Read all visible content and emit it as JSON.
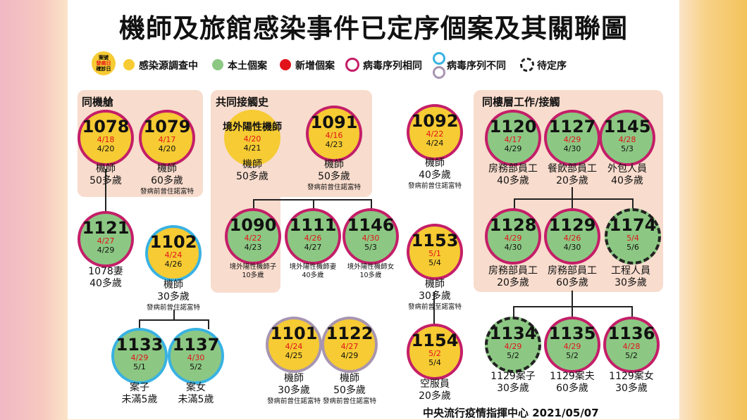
{
  "title": "機師及旅館感染事件已定序個案及其關聯圖",
  "legend": {
    "key_lines": [
      "案號",
      "發病日",
      "確診日"
    ],
    "items": [
      "感染源調查中",
      "本土個案",
      "新增個案",
      "病毒序列相同",
      "病毒序列不同",
      "待定序"
    ],
    "colors": {
      "yellow": "#f6cb33",
      "green": "#8cc883",
      "red": "#e2121a",
      "magenta": "#c41e68",
      "blue": "#39b2e2",
      "purple": "#a895b1"
    }
  },
  "groups": {
    "g1": "同機艙",
    "g2": "共同接觸史",
    "g3": "同樓層工作/接觸"
  },
  "nodes": {
    "n1078": {
      "id": "1078",
      "onset": "4/18",
      "confirm": "4/20",
      "label": [
        "機師",
        "50多歲"
      ]
    },
    "n1079": {
      "id": "1079",
      "onset": "4/17",
      "confirm": "4/20",
      "label": [
        "機師",
        "60多歲",
        "發病前曾住諾富特"
      ]
    },
    "nOverseas": {
      "id": "境外陽性機師",
      "onset": "4/20",
      "confirm": "4/21",
      "label": [
        "機師",
        "50多歲"
      ]
    },
    "n1091": {
      "id": "1091",
      "onset": "4/16",
      "confirm": "4/23",
      "label": [
        "機師",
        "50多歲",
        "發病前曾住諾富特"
      ]
    },
    "n1092": {
      "id": "1092",
      "onset": "4/22",
      "confirm": "4/24",
      "label": [
        "機師",
        "40多歲",
        "發病前曾住諾富特"
      ]
    },
    "n1120": {
      "id": "1120",
      "onset": "4/17",
      "confirm": "4/29",
      "label": [
        "房務部員工",
        "40多歲"
      ]
    },
    "n1127": {
      "id": "1127",
      "onset": "4/29",
      "confirm": "4/30",
      "label": [
        "餐飲部員工",
        "20多歲"
      ]
    },
    "n1145": {
      "id": "1145",
      "onset": "4/28",
      "confirm": "5/3",
      "label": [
        "外包人員",
        "40多歲"
      ]
    },
    "n1121": {
      "id": "1121",
      "onset": "4/27",
      "confirm": "4/29",
      "label": [
        "1078妻",
        "40多歲"
      ]
    },
    "n1102": {
      "id": "1102",
      "onset": "4/24",
      "confirm": "4/26",
      "label": [
        "機師",
        "30多歲",
        "發病前曾住諾富特"
      ]
    },
    "n1090": {
      "id": "1090",
      "onset": "4/22",
      "confirm": "4/23",
      "label": [
        "境外陽性機師子",
        "10多歲"
      ]
    },
    "n1111": {
      "id": "1111",
      "onset": "4/26",
      "confirm": "4/27",
      "label": [
        "境外陽性機師妻",
        "40多歲"
      ]
    },
    "n1146": {
      "id": "1146",
      "onset": "4/30",
      "confirm": "5/3",
      "label": [
        "境外陽性機師女",
        "10多歲"
      ]
    },
    "n1153": {
      "id": "1153",
      "onset": "5/1",
      "confirm": "5/4",
      "label": [
        "機師",
        "30多歲",
        "發病前曾至諾富特"
      ]
    },
    "n1128": {
      "id": "1128",
      "onset": "4/29",
      "confirm": "4/30",
      "label": [
        "房務部員工",
        "20多歲"
      ]
    },
    "n1129": {
      "id": "1129",
      "onset": "4/26",
      "confirm": "4/30",
      "label": [
        "房務部員工",
        "60多歲"
      ]
    },
    "n1174": {
      "id": "1174",
      "onset": "5/4",
      "confirm": "5/6",
      "label": [
        "工程人員",
        "30多歲"
      ]
    },
    "n1133": {
      "id": "1133",
      "onset": "4/29",
      "confirm": "5/1",
      "label": [
        "案子",
        "未滿5歲"
      ]
    },
    "n1137": {
      "id": "1137",
      "onset": "4/30",
      "confirm": "5/2",
      "label": [
        "案女",
        "未滿5歲"
      ]
    },
    "n1101": {
      "id": "1101",
      "onset": "4/24",
      "confirm": "4/25",
      "label": [
        "機師",
        "30多歲",
        "發病前曾住諾富特"
      ]
    },
    "n1122": {
      "id": "1122",
      "onset": "4/27",
      "confirm": "4/29",
      "label": [
        "機師",
        "50多歲",
        "發病前曾住諾富特"
      ]
    },
    "n1154": {
      "id": "1154",
      "onset": "5/2",
      "confirm": "5/4",
      "label": [
        "空服員",
        "20多歲"
      ]
    },
    "n1134": {
      "id": "1134",
      "onset": "4/29",
      "confirm": "5/2",
      "label": [
        "1129案子",
        "30多歲"
      ]
    },
    "n1135": {
      "id": "1135",
      "onset": "4/29",
      "confirm": "5/2",
      "label": [
        "1129案夫",
        "60多歲"
      ]
    },
    "n1136": {
      "id": "1136",
      "onset": "4/28",
      "confirm": "5/2",
      "label": [
        "1129案女",
        "30多歲"
      ]
    }
  },
  "footer": "中央流行疫情指揮中心 2021/05/07"
}
